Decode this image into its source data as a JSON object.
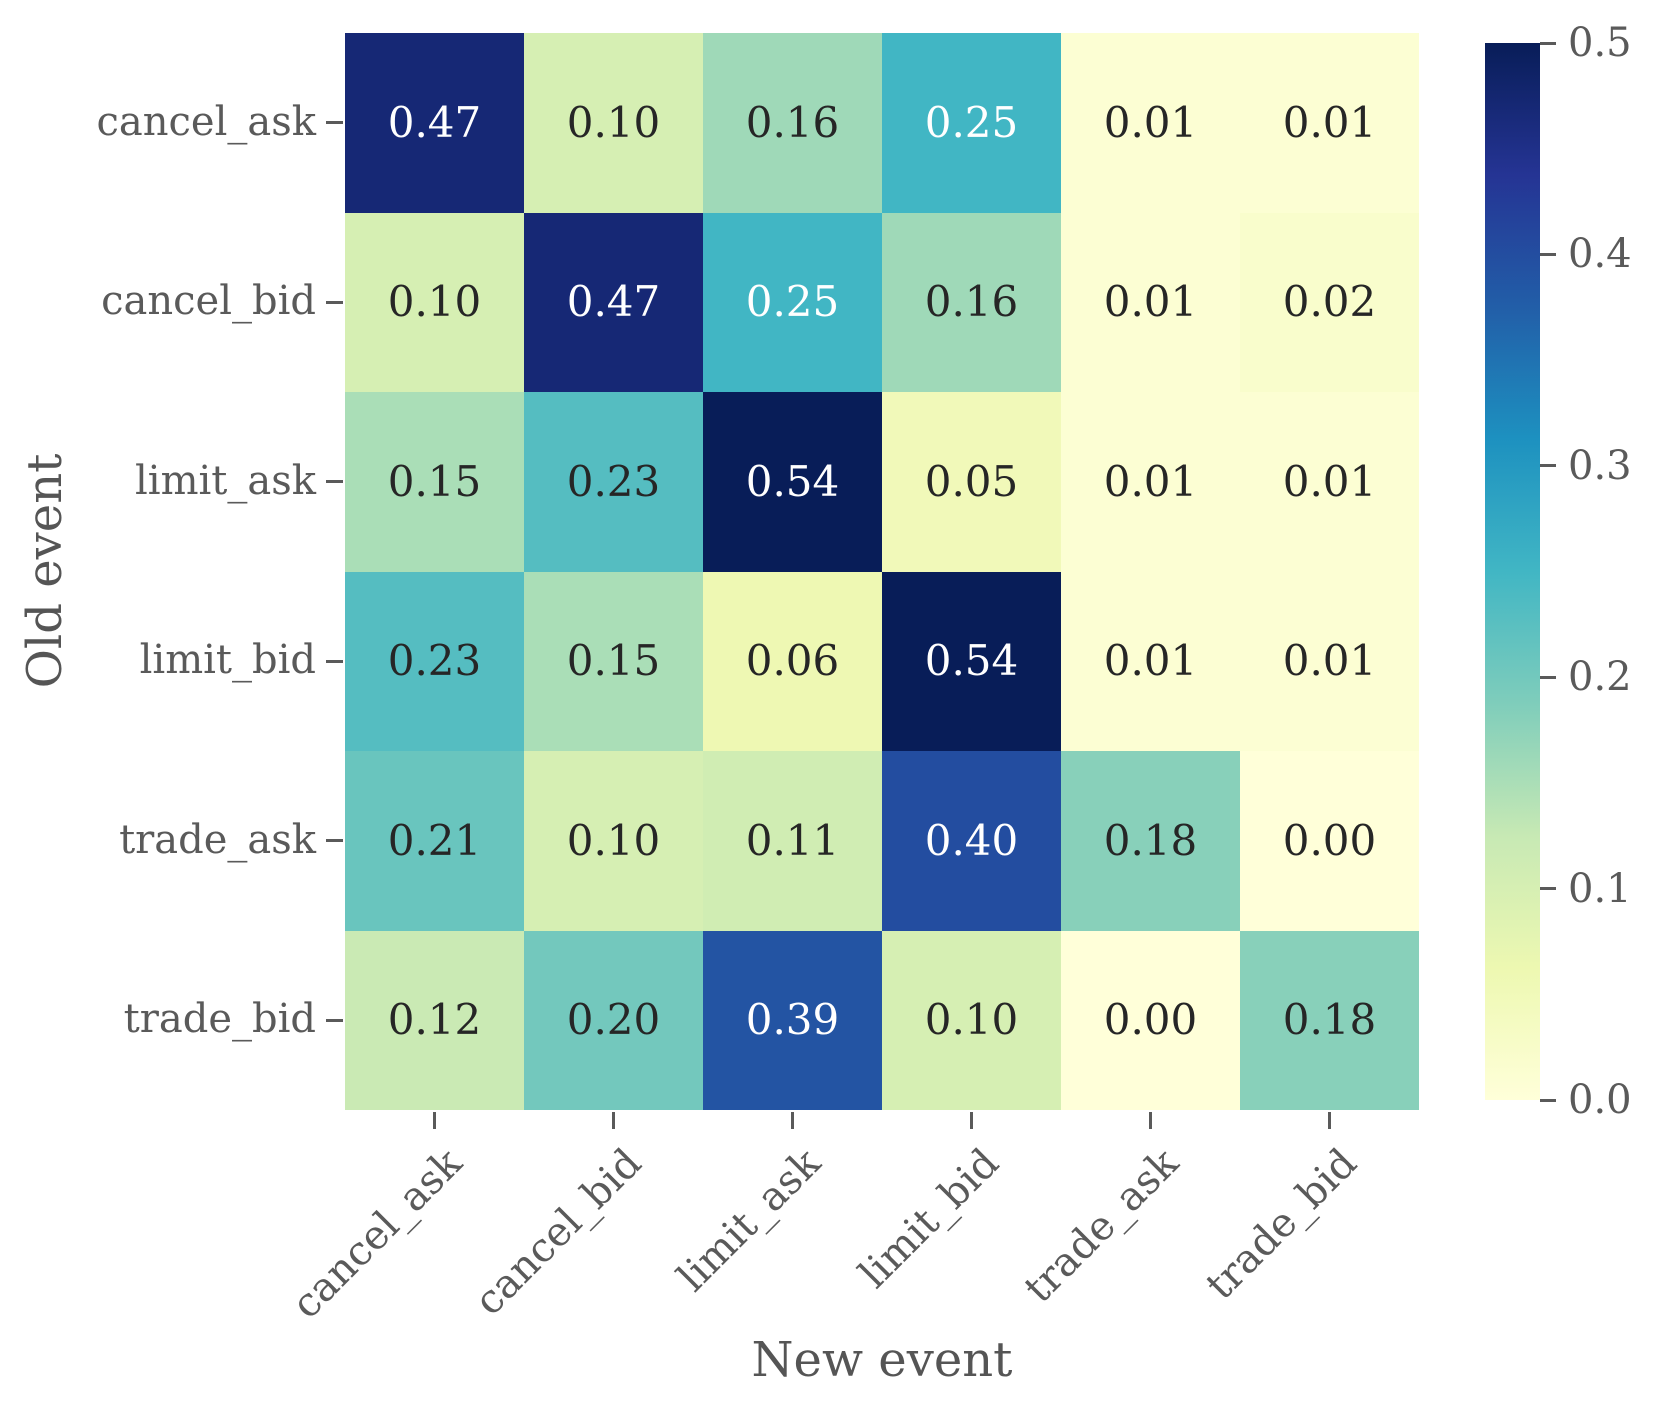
{
  "figure": {
    "background": "#ffffff",
    "axis_text_color": "#5a5a5a",
    "axis_title_color": "#555555"
  },
  "chart_data": {
    "type": "heatmap",
    "title": "",
    "xlabel": "New event",
    "ylabel": "Old event",
    "x_categories": [
      "cancel_ask",
      "cancel_bid",
      "limit_ask",
      "limit_bid",
      "trade_ask",
      "trade_bid"
    ],
    "y_categories": [
      "cancel_ask",
      "cancel_bid",
      "limit_ask",
      "limit_bid",
      "trade_ask",
      "trade_bid"
    ],
    "values": [
      [
        0.47,
        0.1,
        0.16,
        0.25,
        0.01,
        0.01
      ],
      [
        0.1,
        0.47,
        0.25,
        0.16,
        0.01,
        0.02
      ],
      [
        0.15,
        0.23,
        0.54,
        0.05,
        0.01,
        0.01
      ],
      [
        0.23,
        0.15,
        0.06,
        0.54,
        0.01,
        0.01
      ],
      [
        0.21,
        0.1,
        0.11,
        0.4,
        0.18,
        0.0
      ],
      [
        0.12,
        0.2,
        0.39,
        0.1,
        0.0,
        0.18
      ]
    ],
    "value_decimals": 2,
    "colormap": "YlGnBu",
    "colormap_stops": [
      "#ffffd9",
      "#edf8b1",
      "#c7e9b4",
      "#7fcdbb",
      "#41b6c4",
      "#1d91c0",
      "#225ea8",
      "#253494",
      "#081d58"
    ],
    "vmin": 0.0,
    "vmax": 0.5,
    "grid": false,
    "legend": false,
    "colorbar": {
      "tick_labels": [
        "0.5",
        "0.4",
        "0.3",
        "0.2",
        "0.1",
        "0.0"
      ]
    },
    "annotation_colors": {
      "dark": "#262626",
      "light": "#ffffff"
    }
  }
}
